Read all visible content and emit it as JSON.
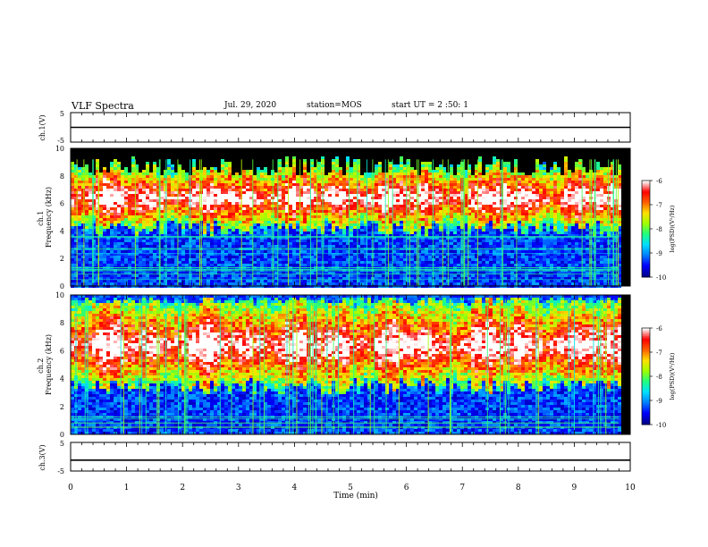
{
  "header": {
    "title": "VLF Spectra",
    "date": "Jul. 29, 2020",
    "station": "station=MOS",
    "start_ut": "start UT =  2 :50: 1"
  },
  "chart_data": [
    {
      "type": "line",
      "panel": "ch1-waveform",
      "ylabel": "ch.1(V)",
      "ylim": [
        -5,
        5
      ],
      "yticks": [
        "5",
        "-5"
      ],
      "x": [
        0,
        10
      ],
      "values": [
        0,
        0
      ]
    },
    {
      "type": "heatmap",
      "panel": "ch1-spectrogram",
      "ylabel": "ch.1\nFrequency (kHz)",
      "ylim": [
        0,
        10
      ],
      "yticks": [
        "0",
        "2",
        "4",
        "6",
        "8",
        "10"
      ],
      "colorbar": {
        "label": "log(PSD)(V²/Hz)",
        "range": [
          -10,
          -6
        ],
        "ticks": [
          "-6",
          "-7",
          "-8",
          "-9",
          "-10"
        ]
      },
      "band_khz": [
        4.3,
        9.5
      ],
      "peak_khz": 6.5,
      "data_end_min": 9.8
    },
    {
      "type": "heatmap",
      "panel": "ch2-spectrogram",
      "ylabel": "ch.2\nFrequency (kHz)",
      "ylim": [
        0,
        10
      ],
      "yticks": [
        "0",
        "2",
        "4",
        "6",
        "8",
        "10"
      ],
      "colorbar": {
        "label": "log(PSD)(V²/Hz)",
        "range": [
          -10,
          -6
        ],
        "ticks": [
          "-6",
          "-7",
          "-8",
          "-9",
          "-10"
        ]
      },
      "band_khz": [
        3.5,
        10
      ],
      "peak_khz": 6.5,
      "data_end_min": 9.8
    },
    {
      "type": "line",
      "panel": "ch3-waveform",
      "ylabel": "ch.3(V)",
      "ylim": [
        -5,
        5
      ],
      "yticks": [
        "5",
        "-5"
      ],
      "x": [
        0,
        10
      ],
      "values": [
        -1.2,
        -1.2
      ]
    }
  ],
  "xaxis": {
    "label": "Time (min)",
    "range": [
      0,
      10
    ],
    "ticks": [
      "0",
      "1",
      "2",
      "3",
      "4",
      "5",
      "6",
      "7",
      "8",
      "9",
      "10"
    ]
  },
  "colors": {
    "colormap": [
      "#00008c",
      "#0000ff",
      "#0080ff",
      "#00e0ff",
      "#20ff80",
      "#a0ff00",
      "#ffe000",
      "#ff6000",
      "#ff0000",
      "#ffffff"
    ]
  }
}
